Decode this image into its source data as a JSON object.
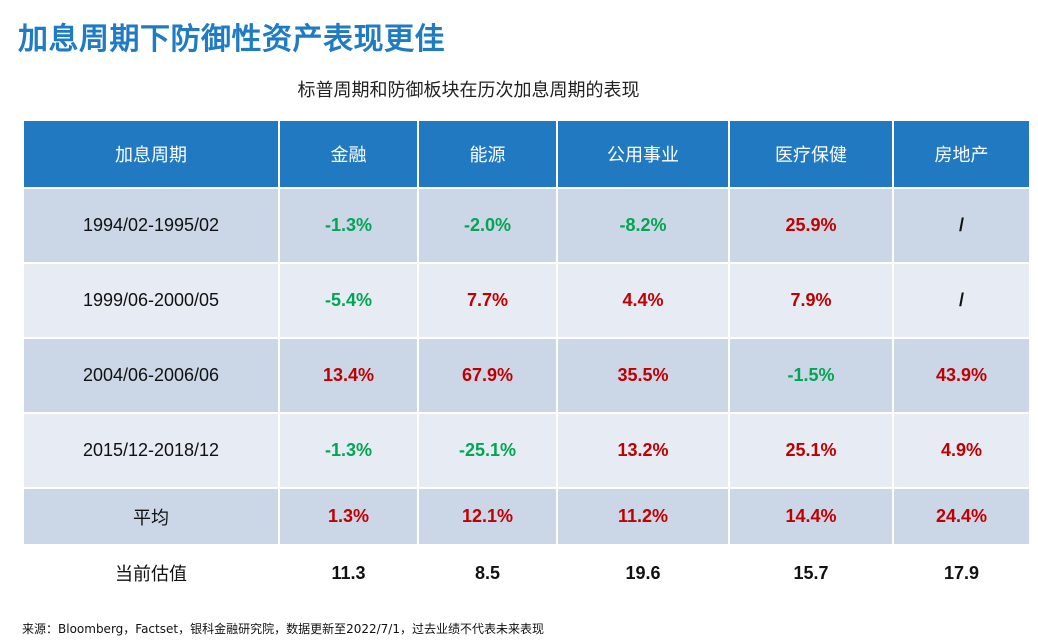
{
  "title": "加息周期下防御性资产表现更佳",
  "caption": "标普周期和防御板块在历次加息周期的表现",
  "table": {
    "headers": [
      "加息周期",
      "金融",
      "能源",
      "公用事业",
      "医疗保健",
      "房地产"
    ],
    "rows": [
      {
        "period": "1994/02-1995/02",
        "values": [
          "-1.3%",
          "-2.0%",
          "-8.2%",
          "25.9%",
          "/"
        ]
      },
      {
        "period": "1999/06-2000/05",
        "values": [
          "-5.4%",
          "7.7%",
          "4.4%",
          "7.9%",
          "/"
        ]
      },
      {
        "period": "2004/06-2006/06",
        "values": [
          "13.4%",
          "67.9%",
          "35.5%",
          "-1.5%",
          "43.9%"
        ]
      },
      {
        "period": "2015/12-2018/12",
        "values": [
          "-1.3%",
          "-25.1%",
          "13.2%",
          "25.1%",
          "4.9%"
        ]
      },
      {
        "period": "平均",
        "values": [
          "1.3%",
          "12.1%",
          "11.2%",
          "14.4%",
          "24.4%"
        ]
      },
      {
        "period": "当前估值",
        "values": [
          "11.3",
          "8.5",
          "19.6",
          "15.7",
          "17.9"
        ]
      }
    ]
  },
  "source": "来源：Bloomberg，Factset，银科金融研究院，数据更新至2022/7/1，过去业绩不代表未来表现",
  "colors": {
    "title": "#1f7bc4",
    "header_bg": "#2179c2",
    "positive": "#c00000",
    "negative": "#00a651",
    "row_dark": "#cbd6e6",
    "row_light": "#e7ebf4"
  }
}
